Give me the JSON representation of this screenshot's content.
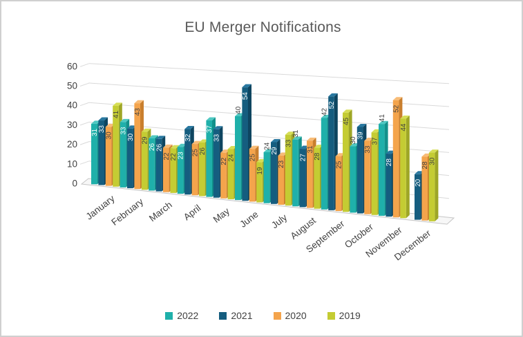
{
  "title": "EU Merger Notifications",
  "chart_data": {
    "type": "bar",
    "style": "3d-clustered-column",
    "title": "EU Merger Notifications",
    "categories": [
      "January",
      "February",
      "March",
      "April",
      "May",
      "June",
      "July",
      "August",
      "September",
      "October",
      "November",
      "December"
    ],
    "series": [
      {
        "name": "2022",
        "color": "#1FB0AA",
        "side_color": "#12918B",
        "top_color": "#4FC8C2",
        "label_color": "#FFFFFF",
        "values": [
          31,
          33,
          26,
          23,
          37,
          40,
          24,
          31,
          42,
          30,
          41,
          null
        ],
        "outside_label_indices": [
          5,
          6,
          7,
          8,
          9,
          10
        ]
      },
      {
        "name": "2021",
        "color": "#155D7F",
        "side_color": "#0E4560",
        "top_color": "#2978A0",
        "label_color": "#FFFFFF",
        "values": [
          33,
          30,
          26,
          32,
          33,
          54,
          29,
          27,
          52,
          39,
          28,
          20
        ],
        "outside_label_indices": []
      },
      {
        "name": "2020",
        "color": "#F4A44C",
        "side_color": "#C97F2E",
        "top_color": "#F8BC77",
        "label_color": "#404040",
        "values": [
          30,
          43,
          22,
          25,
          22,
          25,
          23,
          31,
          25,
          33,
          52,
          28
        ],
        "outside_label_indices": []
      },
      {
        "name": "2019",
        "color": "#C4CC33",
        "side_color": "#9EA626",
        "top_color": "#D6DE55",
        "label_color": "#404040",
        "values": [
          41,
          29,
          22,
          26,
          24,
          19,
          33,
          28,
          45,
          37,
          44,
          30
        ],
        "outside_label_indices": []
      }
    ],
    "xlabel": "",
    "ylabel": "",
    "ylim": [
      0,
      60
    ],
    "yticks": [
      0,
      10,
      20,
      30,
      40,
      50,
      60
    ],
    "grid": true,
    "legend_position": "bottom",
    "outside_label_color": "#404040",
    "grid_color": "#D9D9D9",
    "axis_text_color": "#404040",
    "title_color": "#595959",
    "floor_edge_color": "#C5C5C5"
  }
}
